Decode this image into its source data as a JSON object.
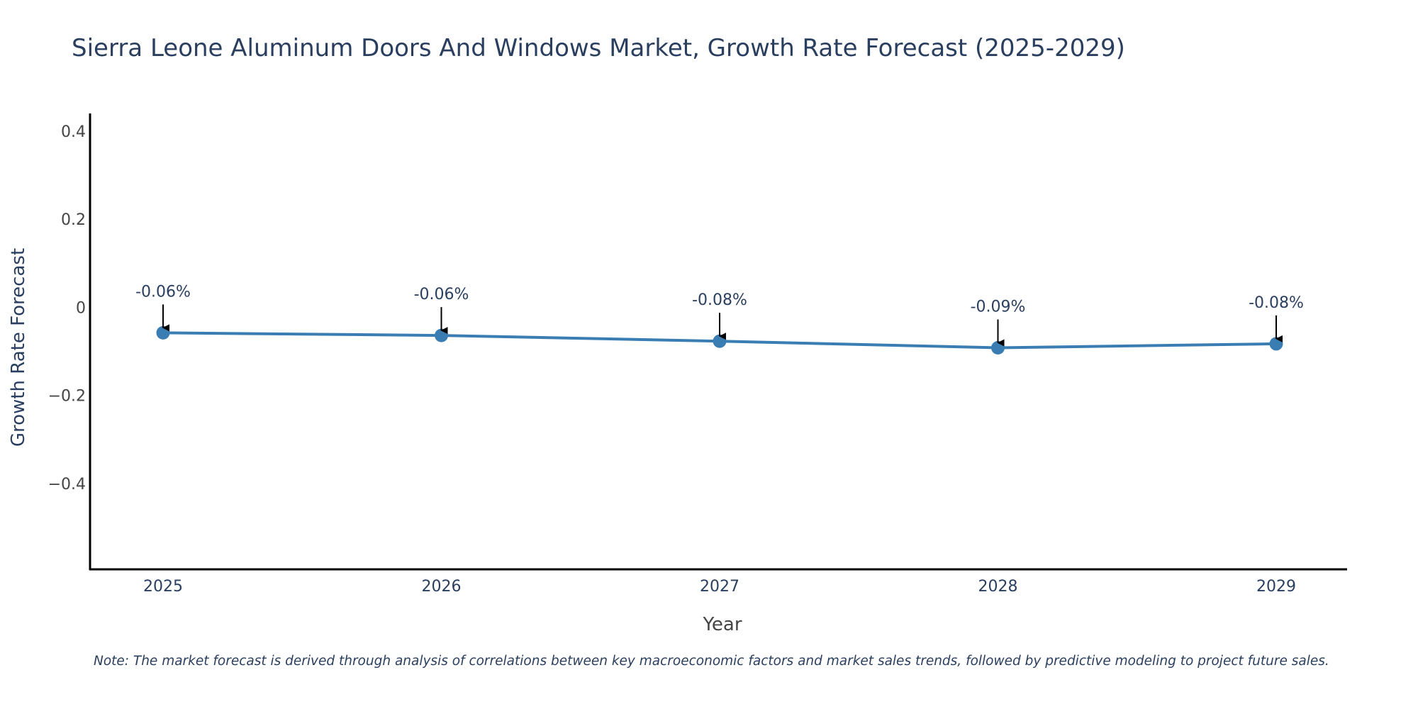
{
  "chart_data": {
    "type": "line",
    "title": "Sierra Leone Aluminum Doors And Windows Market, Growth Rate Forecast (2025-2029)",
    "xlabel": "Year",
    "ylabel": "Growth Rate Forecast",
    "categories": [
      "2025",
      "2026",
      "2027",
      "2028",
      "2029"
    ],
    "series": [
      {
        "name": "Growth Rate Forecast",
        "values": [
          -0.058,
          -0.064,
          -0.077,
          -0.092,
          -0.083
        ],
        "color": "#3a7db3"
      }
    ],
    "data_labels": [
      "-0.06%",
      "-0.06%",
      "-0.08%",
      "-0.09%",
      "-0.08%"
    ],
    "y_ticks": [
      0.4,
      0.2,
      0,
      -0.2,
      -0.4
    ],
    "y_tick_labels": [
      "0.4",
      "0.2",
      "0",
      "−0.2",
      "−0.4"
    ],
    "ylim": [
      -0.595,
      0.44
    ],
    "grid": false,
    "note": "Note: The market forecast is derived through analysis of correlations between key macroeconomic factors and market sales trends, followed by predictive modeling to project future sales."
  }
}
